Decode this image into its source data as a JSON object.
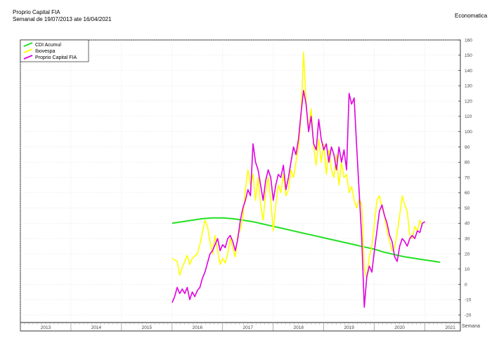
{
  "header": {
    "title": "Proprio Capital FIA",
    "subtitle": "Semanal de 19/07/2013 ate 16/04/2021",
    "brand": "Economatica"
  },
  "chart_data": {
    "type": "line",
    "title": "Proprio Capital FIA",
    "subtitle": "Semanal de 19/07/2013 ate 16/04/2021",
    "xlabel": "Semana",
    "ylabel": "",
    "ylim": [
      -25,
      160
    ],
    "y_ticks": [
      -20,
      -10,
      0,
      10,
      20,
      30,
      40,
      50,
      60,
      70,
      80,
      90,
      100,
      110,
      120,
      130,
      140,
      150,
      160
    ],
    "x_ticks": [
      "2013",
      "2014",
      "2015",
      "2016",
      "2017",
      "2018",
      "2019",
      "2020",
      "2021"
    ],
    "grid": true,
    "legend_position": "top-left",
    "series": [
      {
        "name": "CDI Acumul",
        "color": "#22e022",
        "points": [
          [
            2016.0,
            40
          ],
          [
            2016.2,
            41
          ],
          [
            2016.4,
            42
          ],
          [
            2016.6,
            43
          ],
          [
            2016.8,
            43.5
          ],
          [
            2017.0,
            43.5
          ],
          [
            2017.2,
            43
          ],
          [
            2017.4,
            42
          ],
          [
            2017.6,
            41
          ],
          [
            2017.8,
            39.5
          ],
          [
            2018.0,
            38
          ],
          [
            2018.2,
            36.5
          ],
          [
            2018.4,
            35
          ],
          [
            2018.6,
            33.5
          ],
          [
            2018.8,
            32
          ],
          [
            2019.0,
            30.5
          ],
          [
            2019.2,
            29
          ],
          [
            2019.4,
            27.5
          ],
          [
            2019.6,
            26
          ],
          [
            2019.8,
            24.5
          ],
          [
            2020.0,
            23
          ],
          [
            2020.2,
            21
          ],
          [
            2020.4,
            19.5
          ],
          [
            2020.6,
            18
          ],
          [
            2020.8,
            17
          ],
          [
            2021.0,
            16
          ],
          [
            2021.2,
            15
          ],
          [
            2021.3,
            14.5
          ]
        ]
      },
      {
        "name": "Ibovespa",
        "color": "#ffff00",
        "points": [
          [
            2016.0,
            17
          ],
          [
            2016.1,
            15
          ],
          [
            2016.15,
            6
          ],
          [
            2016.2,
            11
          ],
          [
            2016.3,
            19
          ],
          [
            2016.35,
            13
          ],
          [
            2016.4,
            17
          ],
          [
            2016.5,
            20
          ],
          [
            2016.55,
            26
          ],
          [
            2016.6,
            34
          ],
          [
            2016.65,
            42
          ],
          [
            2016.7,
            38
          ],
          [
            2016.75,
            28
          ],
          [
            2016.8,
            20
          ],
          [
            2016.85,
            32
          ],
          [
            2016.9,
            22
          ],
          [
            2016.95,
            13
          ],
          [
            2017.0,
            17
          ],
          [
            2017.05,
            14
          ],
          [
            2017.1,
            20
          ],
          [
            2017.15,
            30
          ],
          [
            2017.2,
            24
          ],
          [
            2017.25,
            18
          ],
          [
            2017.3,
            32
          ],
          [
            2017.35,
            36
          ],
          [
            2017.4,
            44
          ],
          [
            2017.45,
            62
          ],
          [
            2017.5,
            75
          ],
          [
            2017.55,
            65
          ],
          [
            2017.6,
            72
          ],
          [
            2017.65,
            55
          ],
          [
            2017.7,
            70
          ],
          [
            2017.75,
            52
          ],
          [
            2017.8,
            42
          ],
          [
            2017.85,
            60
          ],
          [
            2017.9,
            70
          ],
          [
            2017.95,
            55
          ],
          [
            2018.0,
            35
          ],
          [
            2018.05,
            52
          ],
          [
            2018.1,
            65
          ],
          [
            2018.15,
            60
          ],
          [
            2018.2,
            72
          ],
          [
            2018.25,
            58
          ],
          [
            2018.3,
            62
          ],
          [
            2018.35,
            75
          ],
          [
            2018.4,
            70
          ],
          [
            2018.45,
            80
          ],
          [
            2018.5,
            90
          ],
          [
            2018.55,
            110
          ],
          [
            2018.6,
            152
          ],
          [
            2018.65,
            120
          ],
          [
            2018.7,
            100
          ],
          [
            2018.75,
            115
          ],
          [
            2018.8,
            90
          ],
          [
            2018.85,
            78
          ],
          [
            2018.9,
            95
          ],
          [
            2018.95,
            80
          ],
          [
            2019.0,
            92
          ],
          [
            2019.05,
            72
          ],
          [
            2019.1,
            88
          ],
          [
            2019.15,
            75
          ],
          [
            2019.2,
            70
          ],
          [
            2019.25,
            85
          ],
          [
            2019.3,
            65
          ],
          [
            2019.35,
            80
          ],
          [
            2019.4,
            70
          ],
          [
            2019.45,
            72
          ],
          [
            2019.5,
            60
          ],
          [
            2019.55,
            64
          ],
          [
            2019.6,
            55
          ],
          [
            2019.65,
            50
          ],
          [
            2019.7,
            56
          ],
          [
            2019.75,
            52
          ],
          [
            2019.8,
            10
          ],
          [
            2019.85,
            4
          ],
          [
            2019.9,
            18
          ],
          [
            2019.95,
            25
          ],
          [
            2020.0,
            40
          ],
          [
            2020.05,
            55
          ],
          [
            2020.1,
            58
          ],
          [
            2020.15,
            50
          ],
          [
            2020.2,
            45
          ],
          [
            2020.25,
            35
          ],
          [
            2020.3,
            28
          ],
          [
            2020.35,
            22
          ],
          [
            2020.4,
            24
          ],
          [
            2020.45,
            34
          ],
          [
            2020.5,
            45
          ],
          [
            2020.55,
            58
          ],
          [
            2020.6,
            52
          ],
          [
            2020.65,
            48
          ],
          [
            2020.7,
            32
          ],
          [
            2020.75,
            30
          ],
          [
            2020.8,
            38
          ],
          [
            2020.85,
            35
          ],
          [
            2020.9,
            42
          ],
          [
            2020.95,
            38
          ]
        ]
      },
      {
        "name": "Proprio Capital FIA",
        "color": "#e000e0",
        "points": [
          [
            2016.0,
            -12
          ],
          [
            2016.05,
            -8
          ],
          [
            2016.1,
            -2
          ],
          [
            2016.15,
            -6
          ],
          [
            2016.2,
            -3
          ],
          [
            2016.25,
            -6
          ],
          [
            2016.3,
            -2
          ],
          [
            2016.35,
            -10
          ],
          [
            2016.4,
            -5
          ],
          [
            2016.45,
            -8
          ],
          [
            2016.5,
            -4
          ],
          [
            2016.55,
            -2
          ],
          [
            2016.6,
            4
          ],
          [
            2016.65,
            8
          ],
          [
            2016.7,
            14
          ],
          [
            2016.75,
            20
          ],
          [
            2016.8,
            22
          ],
          [
            2016.85,
            26
          ],
          [
            2016.9,
            30
          ],
          [
            2016.95,
            22
          ],
          [
            2017.0,
            26
          ],
          [
            2017.05,
            24
          ],
          [
            2017.1,
            30
          ],
          [
            2017.15,
            32
          ],
          [
            2017.2,
            28
          ],
          [
            2017.25,
            22
          ],
          [
            2017.3,
            30
          ],
          [
            2017.35,
            42
          ],
          [
            2017.4,
            50
          ],
          [
            2017.45,
            55
          ],
          [
            2017.5,
            62
          ],
          [
            2017.55,
            58
          ],
          [
            2017.6,
            92
          ],
          [
            2017.65,
            80
          ],
          [
            2017.7,
            75
          ],
          [
            2017.75,
            65
          ],
          [
            2017.8,
            55
          ],
          [
            2017.85,
            68
          ],
          [
            2017.9,
            75
          ],
          [
            2017.95,
            70
          ],
          [
            2018.0,
            55
          ],
          [
            2018.05,
            65
          ],
          [
            2018.1,
            72
          ],
          [
            2018.15,
            70
          ],
          [
            2018.2,
            78
          ],
          [
            2018.25,
            62
          ],
          [
            2018.3,
            70
          ],
          [
            2018.35,
            80
          ],
          [
            2018.4,
            90
          ],
          [
            2018.45,
            85
          ],
          [
            2018.5,
            95
          ],
          [
            2018.55,
            112
          ],
          [
            2018.6,
            127
          ],
          [
            2018.65,
            118
          ],
          [
            2018.7,
            100
          ],
          [
            2018.75,
            110
          ],
          [
            2018.8,
            92
          ],
          [
            2018.85,
            88
          ],
          [
            2018.9,
            108
          ],
          [
            2018.95,
            95
          ],
          [
            2019.0,
            88
          ],
          [
            2019.05,
            92
          ],
          [
            2019.1,
            80
          ],
          [
            2019.15,
            90
          ],
          [
            2019.2,
            85
          ],
          [
            2019.25,
            75
          ],
          [
            2019.3,
            90
          ],
          [
            2019.35,
            80
          ],
          [
            2019.4,
            88
          ],
          [
            2019.45,
            75
          ],
          [
            2019.5,
            125
          ],
          [
            2019.55,
            118
          ],
          [
            2019.6,
            122
          ],
          [
            2019.65,
            90
          ],
          [
            2019.7,
            60
          ],
          [
            2019.75,
            30
          ],
          [
            2019.8,
            -15
          ],
          [
            2019.85,
            5
          ],
          [
            2019.9,
            12
          ],
          [
            2019.95,
            8
          ],
          [
            2020.0,
            22
          ],
          [
            2020.05,
            35
          ],
          [
            2020.1,
            48
          ],
          [
            2020.15,
            52
          ],
          [
            2020.2,
            45
          ],
          [
            2020.25,
            40
          ],
          [
            2020.3,
            32
          ],
          [
            2020.35,
            28
          ],
          [
            2020.4,
            18
          ],
          [
            2020.45,
            15
          ],
          [
            2020.5,
            25
          ],
          [
            2020.55,
            30
          ],
          [
            2020.6,
            28
          ],
          [
            2020.65,
            25
          ],
          [
            2020.7,
            30
          ],
          [
            2020.75,
            32
          ],
          [
            2020.8,
            30
          ],
          [
            2020.85,
            35
          ],
          [
            2020.9,
            34
          ],
          [
            2020.95,
            40
          ],
          [
            2021.0,
            41
          ]
        ]
      }
    ]
  }
}
